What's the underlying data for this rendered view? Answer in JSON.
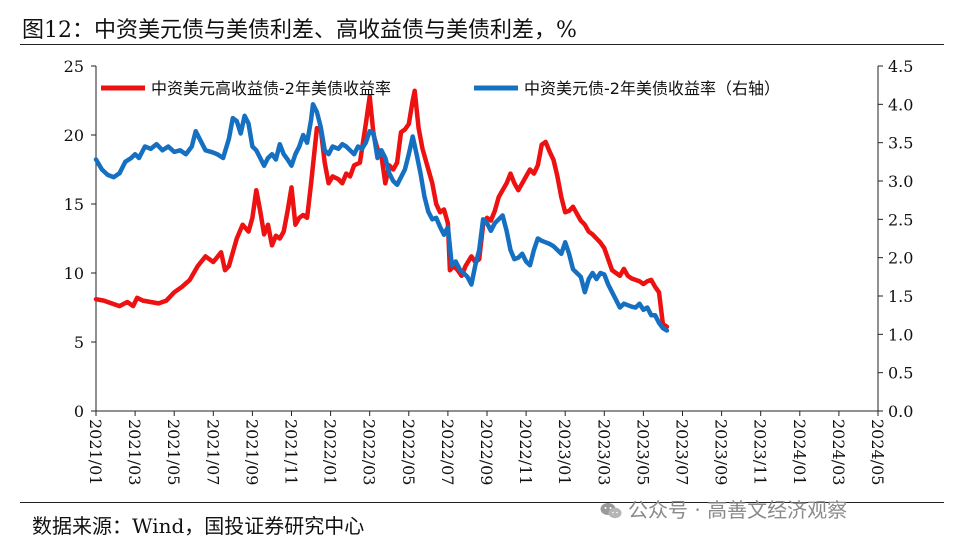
{
  "header": {
    "title": "图12：中资美元债与美债利差、高收益债与美债利差，%"
  },
  "footer": {
    "source": "数据来源：Wind，国投证券研究中心",
    "watermark": "公众号 · 高善文经济观察",
    "watermark_icon": "wechat-icon"
  },
  "chart_data": {
    "type": "line",
    "title": "图12：中资美元债与美债利差、高收益债与美债利差，%",
    "xlabel": "",
    "ylabel": "",
    "y2label": "",
    "ylim": [
      0,
      25
    ],
    "y2lim": [
      0,
      4.5
    ],
    "yticks": [
      0,
      5,
      10,
      15,
      20,
      25
    ],
    "y2ticks": [
      "0.0",
      "0.5",
      "1.0",
      "1.5",
      "2.0",
      "2.5",
      "3.0",
      "3.5",
      "4.0",
      "4.5"
    ],
    "xticks": [
      "2021/01",
      "2021/03",
      "2021/05",
      "2021/07",
      "2021/09",
      "2021/11",
      "2022/01",
      "2022/03",
      "2022/05",
      "2022/07",
      "2022/09",
      "2022/11",
      "2023/01",
      "2023/03",
      "2023/05",
      "2023/07",
      "2023/09",
      "2023/11",
      "2024/01",
      "2024/03",
      "2024/05"
    ],
    "grid": false,
    "legend": "top",
    "series": [
      {
        "name": "中资美元高收益债-2年美债收益率",
        "axis": "left",
        "color": "#ee1111",
        "points": [
          [
            0.0,
            8.1
          ],
          [
            0.4,
            8.0
          ],
          [
            0.8,
            7.8
          ],
          [
            1.2,
            7.6
          ],
          [
            1.6,
            7.9
          ],
          [
            1.9,
            7.6
          ],
          [
            2.1,
            8.2
          ],
          [
            2.4,
            8.0
          ],
          [
            2.8,
            7.9
          ],
          [
            3.2,
            7.8
          ],
          [
            3.6,
            8.0
          ],
          [
            4.0,
            8.6
          ],
          [
            4.4,
            9.0
          ],
          [
            4.8,
            9.5
          ],
          [
            5.2,
            10.5
          ],
          [
            5.6,
            11.2
          ],
          [
            6.0,
            10.8
          ],
          [
            6.4,
            11.5
          ],
          [
            6.6,
            10.2
          ],
          [
            6.8,
            10.5
          ],
          [
            7.2,
            12.5
          ],
          [
            7.5,
            13.5
          ],
          [
            7.8,
            13.0
          ],
          [
            8.0,
            14.0
          ],
          [
            8.2,
            16.0
          ],
          [
            8.4,
            14.5
          ],
          [
            8.6,
            12.8
          ],
          [
            8.8,
            13.5
          ],
          [
            9.0,
            12.0
          ],
          [
            9.2,
            12.7
          ],
          [
            9.4,
            12.5
          ],
          [
            9.6,
            13.0
          ],
          [
            9.8,
            14.5
          ],
          [
            10.0,
            16.2
          ],
          [
            10.2,
            13.5
          ],
          [
            10.4,
            14.0
          ],
          [
            10.6,
            14.2
          ],
          [
            10.8,
            14.0
          ],
          [
            11.0,
            16.5
          ],
          [
            11.3,
            20.5
          ],
          [
            11.5,
            20.4
          ],
          [
            11.7,
            18.0
          ],
          [
            11.9,
            16.5
          ],
          [
            12.1,
            17.0
          ],
          [
            12.4,
            16.8
          ],
          [
            12.6,
            16.5
          ],
          [
            12.8,
            17.2
          ],
          [
            13.0,
            17.0
          ],
          [
            13.2,
            17.8
          ],
          [
            13.5,
            18.0
          ],
          [
            13.8,
            20.8
          ],
          [
            14.0,
            22.8
          ],
          [
            14.2,
            20.0
          ],
          [
            14.4,
            19.0
          ],
          [
            14.6,
            18.5
          ],
          [
            14.8,
            16.5
          ],
          [
            15.0,
            17.8
          ],
          [
            15.2,
            17.5
          ],
          [
            15.4,
            18.0
          ],
          [
            15.6,
            20.2
          ],
          [
            15.8,
            20.4
          ],
          [
            16.0,
            20.8
          ],
          [
            16.2,
            22.5
          ],
          [
            16.3,
            23.2
          ],
          [
            16.5,
            20.5
          ],
          [
            16.7,
            19.0
          ],
          [
            16.9,
            18.0
          ],
          [
            17.2,
            16.5
          ],
          [
            17.4,
            15.0
          ],
          [
            17.6,
            14.4
          ],
          [
            17.8,
            14.6
          ],
          [
            18.0,
            13.6
          ],
          [
            18.1,
            10.2
          ],
          [
            18.3,
            10.5
          ],
          [
            18.5,
            10.2
          ],
          [
            18.7,
            9.8
          ],
          [
            18.9,
            10.5
          ],
          [
            19.2,
            11.2
          ],
          [
            19.4,
            10.8
          ],
          [
            19.6,
            11.0
          ],
          [
            19.8,
            13.5
          ],
          [
            20.0,
            14.0
          ],
          [
            20.2,
            13.8
          ],
          [
            20.4,
            14.5
          ],
          [
            20.6,
            15.5
          ],
          [
            20.8,
            16.0
          ],
          [
            21.0,
            16.5
          ],
          [
            21.2,
            17.2
          ],
          [
            21.4,
            16.5
          ],
          [
            21.6,
            16.0
          ],
          [
            21.8,
            16.5
          ],
          [
            22.0,
            17.0
          ],
          [
            22.2,
            17.5
          ],
          [
            22.4,
            17.2
          ],
          [
            22.6,
            17.8
          ],
          [
            22.8,
            19.3
          ],
          [
            23.0,
            19.5
          ],
          [
            23.2,
            18.8
          ],
          [
            23.4,
            18.2
          ],
          [
            23.6,
            17.0
          ],
          [
            23.8,
            15.5
          ],
          [
            24.0,
            14.4
          ],
          [
            24.2,
            14.5
          ],
          [
            24.4,
            14.8
          ],
          [
            24.6,
            14.3
          ],
          [
            24.8,
            13.8
          ],
          [
            25.0,
            13.5
          ],
          [
            25.2,
            13.0
          ],
          [
            25.4,
            12.8
          ],
          [
            25.6,
            12.5
          ],
          [
            25.8,
            12.2
          ],
          [
            26.0,
            11.8
          ],
          [
            26.2,
            11.0
          ],
          [
            26.4,
            10.2
          ],
          [
            26.6,
            10.0
          ],
          [
            26.8,
            9.8
          ],
          [
            27.0,
            10.3
          ],
          [
            27.2,
            9.8
          ],
          [
            27.4,
            9.6
          ],
          [
            27.6,
            9.5
          ],
          [
            27.8,
            9.4
          ],
          [
            28.0,
            9.2
          ],
          [
            28.2,
            9.4
          ],
          [
            28.4,
            9.5
          ],
          [
            28.6,
            9.0
          ],
          [
            28.8,
            8.6
          ],
          [
            29.0,
            6.3
          ],
          [
            29.2,
            6.1
          ]
        ]
      },
      {
        "name": "中资美元债-2年美债收益率（右轴）",
        "axis": "right",
        "color": "#1670c2",
        "points": [
          [
            0.0,
            3.28
          ],
          [
            0.3,
            3.15
          ],
          [
            0.6,
            3.08
          ],
          [
            0.9,
            3.05
          ],
          [
            1.2,
            3.1
          ],
          [
            1.5,
            3.25
          ],
          [
            1.8,
            3.3
          ],
          [
            2.0,
            3.35
          ],
          [
            2.2,
            3.3
          ],
          [
            2.5,
            3.45
          ],
          [
            2.8,
            3.42
          ],
          [
            3.1,
            3.48
          ],
          [
            3.4,
            3.4
          ],
          [
            3.7,
            3.45
          ],
          [
            4.0,
            3.38
          ],
          [
            4.3,
            3.4
          ],
          [
            4.6,
            3.35
          ],
          [
            4.9,
            3.45
          ],
          [
            5.1,
            3.65
          ],
          [
            5.3,
            3.55
          ],
          [
            5.6,
            3.4
          ],
          [
            5.9,
            3.38
          ],
          [
            6.2,
            3.35
          ],
          [
            6.5,
            3.3
          ],
          [
            6.8,
            3.55
          ],
          [
            7.0,
            3.82
          ],
          [
            7.2,
            3.78
          ],
          [
            7.4,
            3.62
          ],
          [
            7.6,
            3.85
          ],
          [
            7.8,
            3.75
          ],
          [
            8.0,
            3.45
          ],
          [
            8.2,
            3.4
          ],
          [
            8.4,
            3.3
          ],
          [
            8.6,
            3.2
          ],
          [
            8.8,
            3.3
          ],
          [
            9.0,
            3.35
          ],
          [
            9.2,
            3.28
          ],
          [
            9.4,
            3.48
          ],
          [
            9.6,
            3.35
          ],
          [
            9.8,
            3.28
          ],
          [
            10.0,
            3.2
          ],
          [
            10.2,
            3.35
          ],
          [
            10.4,
            3.45
          ],
          [
            10.6,
            3.6
          ],
          [
            10.8,
            3.5
          ],
          [
            11.0,
            3.8
          ],
          [
            11.1,
            4.0
          ],
          [
            11.3,
            3.9
          ],
          [
            11.5,
            3.7
          ],
          [
            11.7,
            3.4
          ],
          [
            11.9,
            3.35
          ],
          [
            12.1,
            3.45
          ],
          [
            12.4,
            3.42
          ],
          [
            12.6,
            3.48
          ],
          [
            12.8,
            3.45
          ],
          [
            13.0,
            3.4
          ],
          [
            13.2,
            3.35
          ],
          [
            13.4,
            3.45
          ],
          [
            13.6,
            3.42
          ],
          [
            13.8,
            3.5
          ],
          [
            14.0,
            3.65
          ],
          [
            14.2,
            3.62
          ],
          [
            14.4,
            3.3
          ],
          [
            14.6,
            3.4
          ],
          [
            14.8,
            3.3
          ],
          [
            15.0,
            3.1
          ],
          [
            15.2,
            3.0
          ],
          [
            15.4,
            2.95
          ],
          [
            15.6,
            3.05
          ],
          [
            15.8,
            3.15
          ],
          [
            16.0,
            3.35
          ],
          [
            16.2,
            3.58
          ],
          [
            16.4,
            3.35
          ],
          [
            16.6,
            3.1
          ],
          [
            16.8,
            2.8
          ],
          [
            17.0,
            2.6
          ],
          [
            17.2,
            2.5
          ],
          [
            17.4,
            2.52
          ],
          [
            17.6,
            2.4
          ],
          [
            17.8,
            2.3
          ],
          [
            18.0,
            2.4
          ],
          [
            18.2,
            1.9
          ],
          [
            18.4,
            1.95
          ],
          [
            18.6,
            1.85
          ],
          [
            18.8,
            1.8
          ],
          [
            19.0,
            1.75
          ],
          [
            19.2,
            1.65
          ],
          [
            19.4,
            1.9
          ],
          [
            19.6,
            2.1
          ],
          [
            19.8,
            2.5
          ],
          [
            20.0,
            2.45
          ],
          [
            20.2,
            2.35
          ],
          [
            20.4,
            2.45
          ],
          [
            20.6,
            2.5
          ],
          [
            20.8,
            2.55
          ],
          [
            21.0,
            2.35
          ],
          [
            21.2,
            2.1
          ],
          [
            21.4,
            1.98
          ],
          [
            21.6,
            2.0
          ],
          [
            21.8,
            2.05
          ],
          [
            22.0,
            1.95
          ],
          [
            22.2,
            1.9
          ],
          [
            22.4,
            2.1
          ],
          [
            22.6,
            2.25
          ],
          [
            22.8,
            2.22
          ],
          [
            23.0,
            2.2
          ],
          [
            23.2,
            2.18
          ],
          [
            23.4,
            2.15
          ],
          [
            23.6,
            2.1
          ],
          [
            23.8,
            2.05
          ],
          [
            24.0,
            2.2
          ],
          [
            24.2,
            2.05
          ],
          [
            24.4,
            1.85
          ],
          [
            24.6,
            1.8
          ],
          [
            24.8,
            1.75
          ],
          [
            25.0,
            1.55
          ],
          [
            25.2,
            1.72
          ],
          [
            25.4,
            1.8
          ],
          [
            25.6,
            1.72
          ],
          [
            25.8,
            1.8
          ],
          [
            26.0,
            1.78
          ],
          [
            26.2,
            1.65
          ],
          [
            26.4,
            1.55
          ],
          [
            26.6,
            1.45
          ],
          [
            26.8,
            1.35
          ],
          [
            27.0,
            1.4
          ],
          [
            27.2,
            1.38
          ],
          [
            27.4,
            1.36
          ],
          [
            27.6,
            1.35
          ],
          [
            27.8,
            1.4
          ],
          [
            28.0,
            1.32
          ],
          [
            28.2,
            1.35
          ],
          [
            28.4,
            1.25
          ],
          [
            28.6,
            1.25
          ],
          [
            28.8,
            1.15
          ],
          [
            29.0,
            1.08
          ],
          [
            29.2,
            1.05
          ]
        ]
      }
    ]
  }
}
